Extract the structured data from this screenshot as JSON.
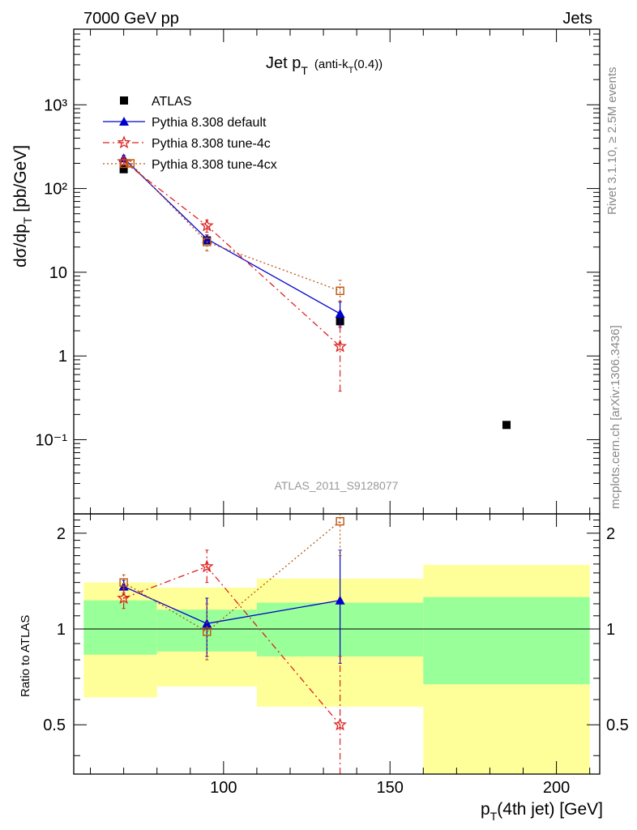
{
  "header": {
    "left": "7000 GeV pp",
    "right": "Jets"
  },
  "title_main": "Jet p",
  "title_sub": "T",
  "title_suffix_a": "(anti-k",
  "title_suffix_sub": "T",
  "title_suffix_b": "(0.4))",
  "watermark": "ATLAS_2011_S9128077",
  "side_text_top": "Rivet 3.1.10, ≥ 2.5M events",
  "side_text_bottom": "mcplots.cern.ch [arXiv:1306.3436]",
  "chart_data": [
    {
      "type": "line",
      "panel": "main",
      "ylabel": "dσ/dp_T [pb/GeV]",
      "yscale": "log",
      "ylim": [
        0.013,
        8000
      ],
      "xlim": [
        55,
        213
      ],
      "y_ticks": [
        {
          "value": 0.1,
          "label": "10⁻¹"
        },
        {
          "value": 1,
          "label": "1"
        },
        {
          "value": 10,
          "label": "10"
        },
        {
          "value": 100,
          "label": "10²"
        },
        {
          "value": 1000,
          "label": "10³"
        }
      ],
      "legend_position": "top-left",
      "series": [
        {
          "name": "ATLAS",
          "marker": "square-filled",
          "color": "#000000",
          "x": [
            70,
            95,
            135,
            185
          ],
          "y": [
            170,
            24,
            2.6,
            0.15
          ]
        },
        {
          "name": "Pythia 8.308 default",
          "marker": "triangle-filled",
          "color": "#0000cc",
          "linestyle": "solid",
          "x": [
            70,
            95,
            135
          ],
          "y": [
            230,
            25,
            3.2
          ],
          "err_low": [
            210,
            22,
            2.2
          ],
          "err_high": [
            250,
            28,
            4.4
          ]
        },
        {
          "name": "Pythia 8.308 tune-4c",
          "marker": "star-open",
          "color": "#dd2222",
          "linestyle": "dashdot",
          "x": [
            70,
            95,
            135
          ],
          "y": [
            210,
            36,
            1.3
          ],
          "err_low": [
            195,
            30,
            0.38
          ],
          "err_high": [
            225,
            42,
            2.3
          ]
        },
        {
          "name": "Pythia 8.308 tune-4cx",
          "marker": "square-open",
          "color": "#bb5511",
          "linestyle": "dotted",
          "x": [
            72,
            95,
            135
          ],
          "y": [
            200,
            23,
            6
          ],
          "err_low": [
            185,
            18,
            4.5
          ],
          "err_high": [
            215,
            28,
            8
          ]
        }
      ]
    },
    {
      "type": "line",
      "panel": "ratio",
      "xlabel": "p_T(4th jet) [GeV]",
      "ylabel": "Ratio to ATLAS",
      "ylim": [
        0.35,
        2.3
      ],
      "xlim": [
        55,
        213
      ],
      "x_ticks": [
        100,
        150,
        200
      ],
      "y_ticks": [
        {
          "value": 0.5,
          "label": "0.5"
        },
        {
          "value": 1,
          "label": "1"
        },
        {
          "value": 2,
          "label": "2"
        }
      ],
      "bands": [
        {
          "x0": 58,
          "x1": 80,
          "inner": [
            0.83,
            1.23
          ],
          "outer": [
            0.61,
            1.4
          ]
        },
        {
          "x0": 80,
          "x1": 110,
          "inner": [
            0.85,
            1.15
          ],
          "outer": [
            0.66,
            1.35
          ]
        },
        {
          "x0": 110,
          "x1": 160,
          "inner": [
            0.82,
            1.21
          ],
          "outer": [
            0.57,
            1.44
          ]
        },
        {
          "x0": 160,
          "x1": 210,
          "inner": [
            0.67,
            1.26
          ],
          "outer": [
            0.33,
            1.59
          ]
        }
      ],
      "series": [
        {
          "name": "Pythia 8.308 default",
          "color": "#0000cc",
          "marker": "triangle-filled",
          "linestyle": "solid",
          "x": [
            70,
            95,
            135
          ],
          "y": [
            1.36,
            1.04,
            1.23
          ],
          "err_low": [
            1.28,
            0.82,
            0.78
          ],
          "err_high": [
            1.42,
            1.25,
            1.77
          ]
        },
        {
          "name": "Pythia 8.308 tune-4c",
          "color": "#dd2222",
          "marker": "star-open",
          "linestyle": "dashdot",
          "x": [
            70,
            95,
            135
          ],
          "y": [
            1.25,
            1.57,
            0.5
          ],
          "err_low": [
            1.16,
            1.4,
            0.33
          ],
          "err_high": [
            1.34,
            1.77,
            0.82
          ]
        },
        {
          "name": "Pythia 8.308 tune-4cx",
          "color": "#bb5511",
          "marker": "square-open",
          "linestyle": "dotted",
          "x": [
            70,
            95,
            135
          ],
          "y": [
            1.4,
            0.98,
            2.18
          ],
          "err_low": [
            1.3,
            0.8,
            1.7
          ],
          "err_high": [
            1.48,
            1.2,
            2.3
          ]
        }
      ]
    }
  ]
}
